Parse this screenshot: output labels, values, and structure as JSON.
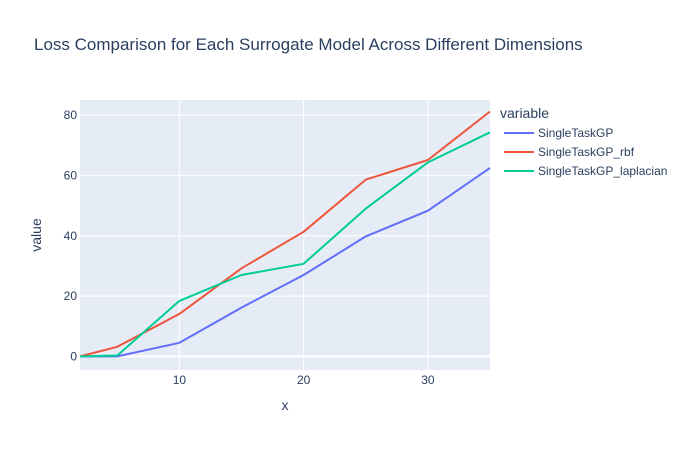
{
  "chart_data": {
    "type": "line",
    "title": "Loss Comparison for Each Surrogate Model Across Different Dimensions",
    "xlabel": "x",
    "ylabel": "value",
    "legend_title": "variable",
    "legend_position": "right",
    "grid": true,
    "xlim": [
      2,
      35
    ],
    "ylim": [
      -4.5,
      85
    ],
    "xticks": [
      10,
      20,
      30
    ],
    "yticks": [
      0,
      20,
      40,
      60,
      80
    ],
    "x": [
      2,
      5,
      10,
      15,
      20,
      25,
      30,
      35
    ],
    "series": [
      {
        "name": "SingleTaskGP",
        "color": "#636efa",
        "values": [
          0,
          0,
          4.5,
          16.2,
          27,
          39.8,
          48.3,
          62.5
        ]
      },
      {
        "name": "SingleTaskGP_rbf",
        "color": "#ef553b",
        "values": [
          0,
          3.2,
          14.1,
          29.2,
          41.3,
          58.6,
          65.1,
          81.2
        ]
      },
      {
        "name": "SingleTaskGP_laplacian",
        "color": "#00cc96",
        "values": [
          0,
          0.3,
          18.4,
          27,
          30.7,
          49,
          64.3,
          74.3
        ]
      }
    ]
  }
}
